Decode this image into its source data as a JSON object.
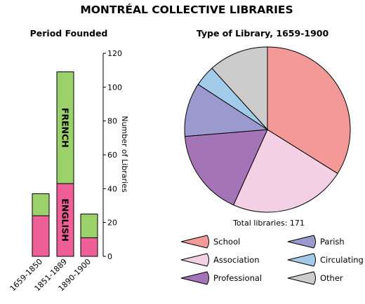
{
  "page_title": "MONTRÉAL COLLECTIVE LIBRARIES",
  "chart_data": [
    {
      "type": "bar",
      "stacked": true,
      "title": "Period Founded",
      "ylabel": "Number of Libraries",
      "ylim": [
        0,
        120
      ],
      "yticks": [
        0,
        20,
        40,
        60,
        80,
        100,
        120
      ],
      "categories": [
        "1659-1850",
        "1851-1889",
        "1890-1900"
      ],
      "series": [
        {
          "name": "ENGLISH",
          "values": [
            24,
            43,
            11
          ],
          "color": "#f06098"
        },
        {
          "name": "FRENCH",
          "values": [
            13,
            66,
            14
          ],
          "color": "#9bd16b"
        }
      ],
      "legend": "labels inside middle bar"
    },
    {
      "type": "pie",
      "title": "Type of Library, 1659-1900",
      "annotation": "Total libraries: 171",
      "legend": "bottom",
      "slices": [
        {
          "name": "School",
          "value": 58,
          "color": "#f39a98"
        },
        {
          "name": "Association",
          "value": 39,
          "color": "#f3d0e4"
        },
        {
          "name": "Professional",
          "value": 29,
          "color": "#a574b7"
        },
        {
          "name": "Parish",
          "value": 18,
          "color": "#9a9ace"
        },
        {
          "name": "Circulating",
          "value": 7,
          "color": "#a2cbea"
        },
        {
          "name": "Other",
          "value": 20,
          "color": "#cccccc"
        }
      ]
    }
  ]
}
